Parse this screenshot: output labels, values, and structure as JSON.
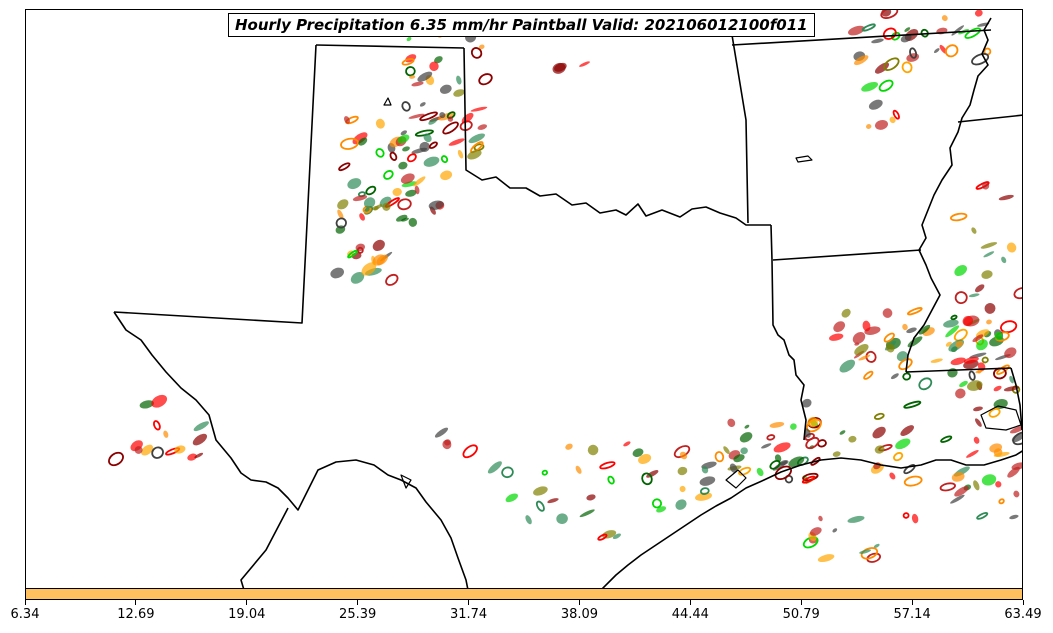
{
  "title": "Hourly Precipitation 6.35 mm/hr Paintball Valid: 202106012100f011",
  "colorbar": {
    "color": "#FFC060",
    "ticks": [
      "6.34",
      "12.69",
      "19.04",
      "25.39",
      "31.74",
      "38.09",
      "44.44",
      "50.79",
      "57.14",
      "63.49"
    ]
  },
  "map": {
    "background": "#ffffff",
    "boundary_color": "#000000",
    "member_colors": [
      "#00D800",
      "#FF0000",
      "#FF8C00",
      "#808000",
      "#8B0000",
      "#006400",
      "#404040",
      "#FFA500",
      "#C02020",
      "#2E8B57"
    ]
  }
}
